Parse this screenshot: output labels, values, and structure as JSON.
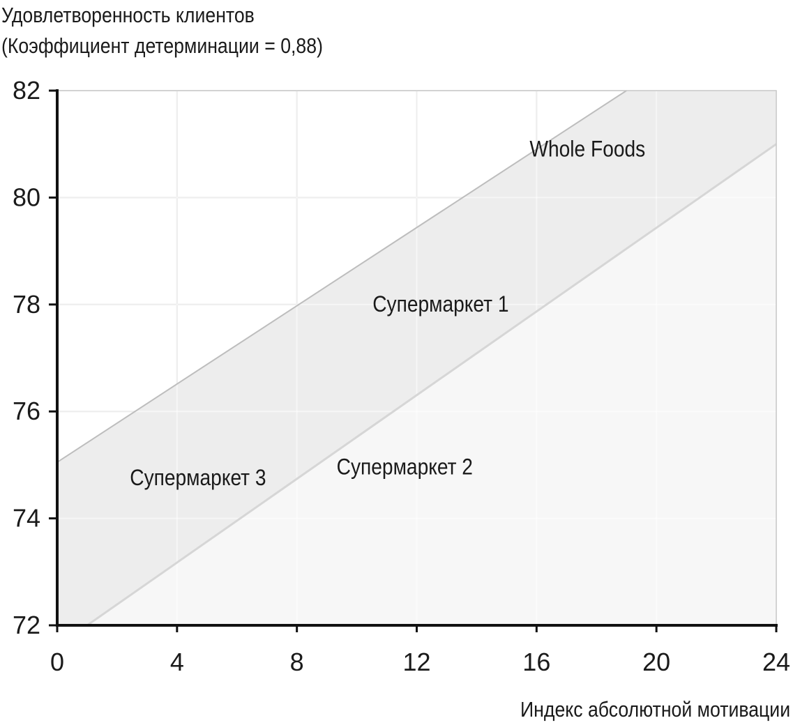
{
  "chart_data": {
    "type": "area",
    "title_lines": [
      "Удовлетворенность клиентов",
      "(Коэффициент детерминации = 0,88)"
    ],
    "xlabel": "Индекс абсолютной мотивации",
    "ylabel": "Удовлетворенность клиентов",
    "xlim": [
      0,
      24
    ],
    "ylim": [
      72,
      82
    ],
    "xticks": [
      "0",
      "4",
      "8",
      "12",
      "16",
      "20",
      "24"
    ],
    "yticks": [
      "72",
      "74",
      "76",
      "78",
      "80",
      "82"
    ],
    "grid": true,
    "bands": [
      {
        "name": "upper",
        "line": [
          [
            0,
            75.05
          ],
          [
            19,
            82
          ]
        ],
        "color": "#ececec"
      },
      {
        "name": "lower",
        "line": [
          [
            1,
            72
          ],
          [
            24,
            81
          ]
        ],
        "color": "#f7f7f7"
      }
    ],
    "annotations": [
      {
        "label": "Whole Foods",
        "x": 17.7,
        "y": 80.9
      },
      {
        "label": "Супермаркет 1",
        "x": 12.8,
        "y": 78.0
      },
      {
        "label": "Супермаркет 2",
        "x": 11.6,
        "y": 74.95
      },
      {
        "label": "Супермаркет 3",
        "x": 4.7,
        "y": 74.75
      }
    ]
  }
}
